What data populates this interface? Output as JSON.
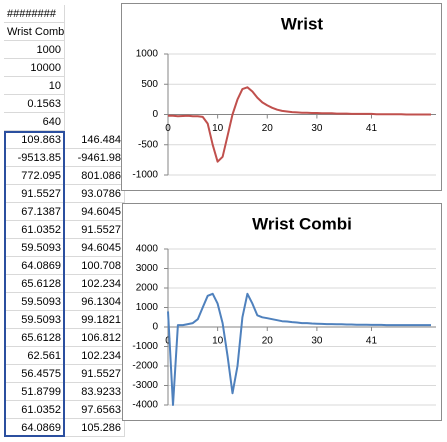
{
  "spreadsheet": {
    "column_a": [
      "########",
      "Wrist Combi:",
      "1000",
      "10000",
      "10",
      "0.1563",
      "640",
      "109.863",
      "-9513.85",
      "772.095",
      "91.5527",
      "67.1387",
      "61.0352",
      "59.5093",
      "64.0869",
      "65.6128",
      "59.5093",
      "59.5093",
      "65.6128",
      "62.561",
      "56.4575",
      "51.8799",
      "61.0352",
      "64.0869"
    ],
    "column_b": [
      "146.484",
      "-9461.98",
      "801.086",
      "93.0786",
      "94.6045",
      "91.5527",
      "94.6045",
      "100.708",
      "102.234",
      "96.1304",
      "99.1821",
      "106.812",
      "102.234",
      "91.5527",
      "83.9233",
      "97.6563",
      "105.286"
    ]
  },
  "charts": [
    {
      "type": "line",
      "title": "Wrist",
      "color": "#c0504d",
      "ylim": [
        -1000,
        1000
      ],
      "yticks": [
        1000,
        500,
        0,
        -500,
        -1000
      ],
      "xlim": [
        0,
        54
      ],
      "xticks": [
        0,
        10,
        20,
        30,
        41
      ],
      "grid": true,
      "values": [
        -20,
        -20,
        -30,
        -25,
        -20,
        -30,
        -30,
        -40,
        -150,
        -500,
        -780,
        -700,
        -350,
        0,
        250,
        420,
        450,
        380,
        280,
        200,
        150,
        110,
        80,
        60,
        50,
        40,
        35,
        30,
        30,
        25,
        25,
        20,
        20,
        20,
        15,
        15,
        15,
        10,
        10,
        10,
        10,
        10,
        5,
        5,
        5,
        5,
        5,
        5,
        0,
        0,
        0,
        0,
        0,
        0
      ]
    },
    {
      "type": "line",
      "title": "Wrist Combi",
      "color": "#4f81bd",
      "ylim": [
        -4000,
        4000
      ],
      "yticks": [
        4000,
        3000,
        2000,
        1000,
        0,
        -1000,
        -2000,
        -3000,
        -4000
      ],
      "xlim": [
        0,
        54
      ],
      "xticks": [
        0,
        10,
        20,
        30,
        41
      ],
      "grid": true,
      "values": [
        800,
        -4000,
        100,
        100,
        150,
        200,
        400,
        1000,
        1600,
        1700,
        1200,
        200,
        -1500,
        -3400,
        -2000,
        500,
        1700,
        1200,
        600,
        500,
        450,
        400,
        350,
        300,
        280,
        250,
        230,
        200,
        200,
        180,
        170,
        160,
        150,
        150,
        140,
        140,
        130,
        130,
        120,
        120,
        120,
        110,
        110,
        110,
        100,
        100,
        100,
        100,
        100,
        100,
        100,
        100,
        100,
        100
      ]
    }
  ]
}
